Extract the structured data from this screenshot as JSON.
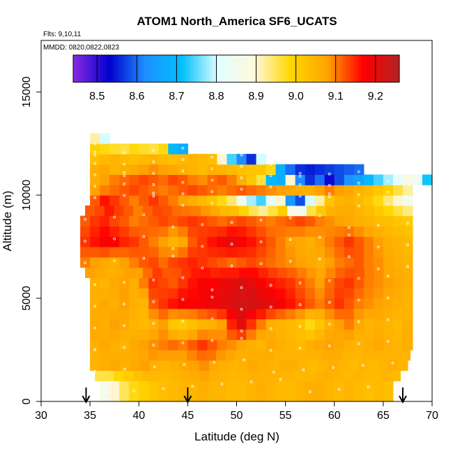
{
  "chart_data": {
    "type": "heatmap",
    "title": "ATOM1 North_America SF6_UCATS",
    "flights_label": "Flts: 9,10,11",
    "dates_label": "MMDD: 0820,0822,0823",
    "xlabel": "Latitude (deg N)",
    "ylabel": "Altitude (m)",
    "xlim": [
      30,
      70
    ],
    "ylim": [
      0,
      17500
    ],
    "x_ticks": [
      "30",
      "35",
      "40",
      "45",
      "50",
      "55",
      "60",
      "65",
      "70"
    ],
    "y_ticks": [
      "0",
      "5000",
      "10000",
      "15000"
    ],
    "colorbar": {
      "range": [
        8.44,
        9.26
      ],
      "ticks": [
        "8.5",
        "8.6",
        "8.7",
        "8.8",
        "8.9",
        "9.0",
        "9.1",
        "9.2"
      ],
      "colors": [
        "#8a2be2",
        "#0000cd",
        "#1e90ff",
        "#00bfff",
        "#e0ffff",
        "#fff8dc",
        "#ffd700",
        "#ffa500",
        "#ff0000",
        "#b22222"
      ]
    },
    "profile_latitudes": [
      34.6,
      45.0,
      67.0
    ],
    "grid": false,
    "altitude_bins_m": [
      250,
      750,
      1250,
      1750,
      2250,
      2750,
      3250,
      3750,
      4250,
      4750,
      5250,
      5750,
      6250,
      6750,
      7250,
      7750,
      8250,
      8750,
      9250,
      9750,
      10250,
      10750,
      11250,
      11750,
      12250,
      12750
    ],
    "layers": [
      {
        "alt": 750,
        "lat_start": 36.0,
        "lat_end": 66.0,
        "values": [
          8.86,
          8.9,
          8.95,
          8.98,
          9.0,
          9.02,
          9.03,
          9.04,
          9.05,
          9.05,
          9.06,
          9.05,
          9.05,
          9.04,
          9.04,
          9.05,
          9.06,
          9.05,
          9.04,
          9.04,
          9.05,
          9.06,
          9.06,
          9.05,
          9.04,
          9.05,
          9.04,
          9.03,
          9.04,
          9.03
        ]
      },
      {
        "alt": 1750,
        "lat_start": 35.0,
        "lat_end": 67.5,
        "values": [
          9.05,
          9.06,
          9.07,
          9.06,
          9.07,
          9.08,
          9.06,
          9.05,
          9.06,
          9.07,
          9.08,
          9.09,
          9.07,
          9.06,
          9.05,
          9.06,
          9.07,
          9.06,
          9.05,
          9.06,
          9.06,
          9.05,
          9.04,
          9.05,
          9.06,
          9.05,
          9.04,
          9.05,
          9.04,
          9.05,
          9.06,
          9.05
        ]
      },
      {
        "alt": 2750,
        "lat_start": 35.0,
        "lat_end": 68.0,
        "values": [
          9.06,
          9.07,
          9.06,
          9.05,
          9.07,
          9.08,
          9.09,
          9.1,
          9.11,
          9.1,
          9.12,
          9.14,
          9.12,
          9.1,
          9.09,
          9.07,
          9.06,
          9.05,
          9.07,
          9.06,
          9.05,
          9.04,
          9.06,
          9.07,
          9.08,
          9.07,
          9.06,
          9.05,
          9.06,
          9.07,
          9.06,
          9.05,
          9.06
        ]
      },
      {
        "alt": 3750,
        "lat_start": 35.0,
        "lat_end": 68.0,
        "values": [
          9.07,
          9.06,
          9.08,
          9.07,
          9.05,
          9.04,
          9.06,
          9.08,
          9.02,
          9.01,
          9.03,
          9.05,
          9.06,
          9.08,
          9.15,
          9.2,
          9.14,
          9.1,
          9.06,
          9.05,
          9.04,
          9.03,
          8.98,
          9.02,
          9.06,
          9.08,
          9.1,
          9.07,
          9.05,
          9.06,
          9.05,
          9.04,
          9.06
        ]
      },
      {
        "alt": 4750,
        "lat_start": 35.0,
        "lat_end": 68.0,
        "values": [
          9.06,
          9.07,
          9.06,
          9.08,
          9.06,
          9.05,
          9.12,
          9.14,
          9.16,
          9.18,
          9.17,
          9.18,
          9.19,
          9.2,
          9.21,
          9.22,
          9.22,
          9.21,
          9.2,
          9.18,
          9.16,
          9.14,
          9.12,
          9.1,
          9.12,
          9.14,
          9.12,
          9.1,
          9.09,
          9.08,
          9.07,
          9.06,
          9.05
        ]
      },
      {
        "alt": 5750,
        "lat_start": 35.0,
        "lat_end": 68.0,
        "values": [
          9.06,
          9.05,
          9.07,
          9.08,
          9.06,
          9.1,
          9.14,
          9.13,
          9.12,
          9.14,
          9.16,
          9.18,
          9.17,
          9.19,
          9.2,
          9.21,
          9.2,
          9.18,
          9.16,
          9.15,
          9.14,
          9.12,
          9.1,
          9.08,
          9.11,
          9.13,
          9.14,
          9.12,
          9.1,
          9.09,
          9.08,
          9.07,
          9.06
        ]
      },
      {
        "alt": 6750,
        "lat_start": 34.0,
        "lat_end": 68.0,
        "values": [
          9.1,
          9.08,
          9.07,
          9.06,
          9.08,
          9.1,
          9.12,
          9.13,
          9.11,
          9.13,
          9.14,
          9.15,
          9.14,
          9.13,
          9.12,
          9.11,
          9.12,
          9.13,
          9.12,
          9.11,
          9.1,
          9.09,
          9.08,
          9.07,
          9.06,
          9.08,
          9.1,
          9.11,
          9.12,
          9.1,
          9.09,
          9.07,
          9.06,
          9.05
        ]
      },
      {
        "alt": 7750,
        "lat_start": 34.0,
        "lat_end": 68.0,
        "values": [
          9.14,
          9.16,
          9.18,
          9.17,
          9.15,
          9.14,
          9.12,
          9.1,
          9.08,
          9.05,
          9.07,
          9.12,
          9.14,
          9.16,
          9.18,
          9.2,
          9.18,
          9.16,
          9.14,
          9.12,
          9.1,
          9.08,
          9.07,
          9.06,
          9.08,
          9.1,
          9.12,
          9.14,
          9.12,
          9.1,
          9.08,
          9.06,
          9.05,
          9.04
        ]
      },
      {
        "alt": 8750,
        "lat_start": 34.0,
        "lat_end": 68.0,
        "values": [
          9.12,
          9.14,
          9.15,
          9.13,
          9.12,
          9.1,
          9.11,
          9.12,
          9.13,
          9.12,
          9.13,
          9.14,
          9.13,
          9.12,
          9.11,
          9.12,
          9.13,
          9.12,
          9.11,
          9.1,
          9.11,
          9.12,
          9.13,
          9.12,
          9.1,
          9.09,
          9.08,
          9.07,
          9.06,
          9.05,
          9.04,
          9.03,
          9.02,
          9.01
        ]
      },
      {
        "alt": 9750,
        "lat_start": 35.0,
        "lat_end": 68.0,
        "values": [
          9.12,
          9.16,
          9.14,
          9.12,
          9.1,
          9.12,
          9.14,
          9.12,
          9.1,
          9.08,
          9.06,
          9.04,
          9.02,
          8.98,
          8.94,
          8.85,
          8.78,
          8.74,
          8.82,
          8.9,
          8.64,
          8.58,
          8.8,
          8.92,
          9.02,
          9.05,
          9.06,
          9.04,
          9.02,
          8.98,
          8.94,
          8.9,
          8.86
        ]
      },
      {
        "alt": 10250,
        "lat_start": 35.0,
        "lat_end": 68.0,
        "values": [
          9.08,
          9.1,
          9.11,
          9.12,
          9.13,
          9.12,
          9.11,
          9.1,
          9.11,
          9.12,
          9.13,
          9.12,
          9.11,
          9.1,
          9.11,
          9.12,
          9.11,
          9.1,
          9.09,
          9.08,
          9.07,
          9.06,
          9.06,
          9.08,
          9.1,
          9.08,
          9.07,
          9.05,
          9.04,
          9.02,
          9.0,
          8.96,
          8.92
        ]
      },
      {
        "alt": 10750,
        "lat_start": 35.0,
        "lat_end": 70.0,
        "values": [
          9.06,
          9.08,
          9.1,
          9.11,
          9.12,
          9.13,
          9.12,
          9.11,
          9.13,
          9.12,
          9.1,
          9.09,
          9.11,
          9.12,
          9.1,
          9.06,
          9.02,
          8.96,
          8.7,
          8.68,
          8.9,
          8.62,
          8.56,
          8.6,
          8.52,
          8.58,
          8.63,
          8.66,
          8.7,
          8.74,
          8.78,
          8.82,
          8.88,
          8.84,
          8.72
        ]
      },
      {
        "alt": 11250,
        "lat_start": 35.0,
        "lat_end": 63.0,
        "values": [
          9.06,
          9.07,
          9.05,
          9.06,
          9.07,
          9.08,
          9.09,
          9.08,
          9.07,
          9.06,
          9.05,
          9.04,
          9.06,
          9.05,
          9.04,
          9.03,
          9.02,
          9.02,
          8.98,
          8.68,
          8.6,
          8.56,
          8.55,
          8.56,
          8.57,
          8.58,
          8.59,
          8.6
        ]
      },
      {
        "alt": 11750,
        "lat_start": 35.0,
        "lat_end": 53.0,
        "values": [
          9.03,
          9.04,
          9.05,
          9.04,
          9.03,
          9.04,
          9.05,
          9.04,
          9.03,
          9.04,
          9.05,
          9.04,
          9.03,
          8.9,
          8.74,
          8.62,
          8.56,
          8.8
        ]
      },
      {
        "alt": 12250,
        "lat_start": 35.0,
        "lat_end": 45.0,
        "values": [
          9.0,
          8.98,
          8.97,
          8.96,
          8.98,
          8.97,
          8.96,
          8.98,
          8.7,
          8.68
        ]
      },
      {
        "alt": 12750,
        "lat_start": 35.0,
        "lat_end": 37.0,
        "values": [
          8.92,
          8.8
        ]
      }
    ]
  }
}
